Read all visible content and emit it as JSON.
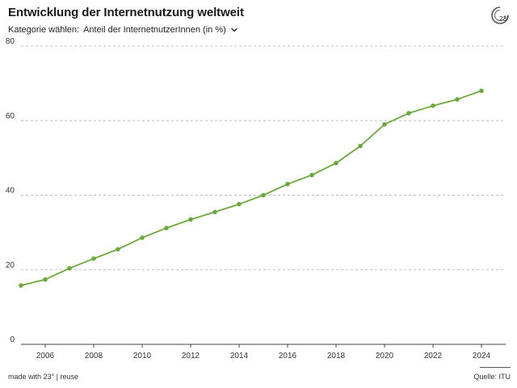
{
  "header": {
    "title": "Entwicklung der Internetnutzung weltweit",
    "selector_prefix": "Kategorie wählen:",
    "selector_value": "Anteil der InternetnutzerInnen (in %)"
  },
  "logo": {
    "icon": "23-degrees-logo-icon",
    "text": "23°"
  },
  "footer": {
    "made_with": "made with 23° | reuse",
    "source": "Quelle: ITU"
  },
  "colors": {
    "line": "#6aaa3a",
    "grid": "#bdbdbd",
    "axis": "#444444"
  },
  "chart_data": {
    "type": "line",
    "title": "Entwicklung der Internetnutzung weltweit",
    "xlabel": "",
    "ylabel": "",
    "xlim": [
      2005,
      2025
    ],
    "ylim": [
      0,
      80
    ],
    "yticks": [
      0,
      20,
      40,
      60,
      80
    ],
    "xticks": [
      2006,
      2008,
      2010,
      2012,
      2014,
      2016,
      2018,
      2020,
      2022,
      2024
    ],
    "grid": true,
    "x": [
      2005,
      2006,
      2007,
      2008,
      2009,
      2010,
      2011,
      2012,
      2013,
      2014,
      2015,
      2016,
      2017,
      2018,
      2019,
      2020,
      2021,
      2022,
      2023,
      2024
    ],
    "series": [
      {
        "name": "",
        "values": [
          15.8,
          17.4,
          20.4,
          23.0,
          25.5,
          28.6,
          31.2,
          33.5,
          35.5,
          37.6,
          40.0,
          43.0,
          45.4,
          48.6,
          53.2,
          59.0,
          62.0,
          64.0,
          65.7,
          68.0
        ]
      }
    ]
  }
}
